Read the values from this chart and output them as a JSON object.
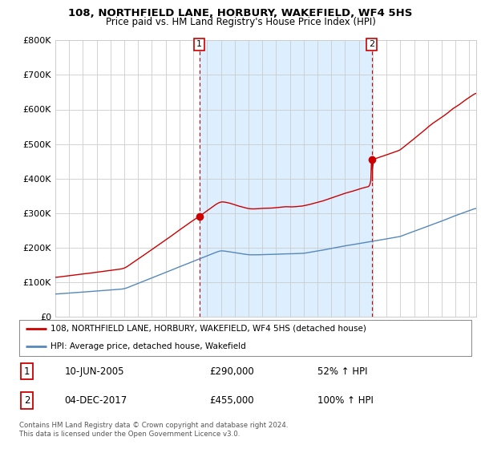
{
  "title": "108, NORTHFIELD LANE, HORBURY, WAKEFIELD, WF4 5HS",
  "subtitle": "Price paid vs. HM Land Registry's House Price Index (HPI)",
  "ylim": [
    0,
    800000
  ],
  "yticks": [
    0,
    100000,
    200000,
    300000,
    400000,
    500000,
    600000,
    700000,
    800000
  ],
  "xlim_start": 1995.0,
  "xlim_end": 2025.5,
  "sale1_year": 2005.44,
  "sale1_price": 290000,
  "sale2_year": 2017.92,
  "sale2_price": 455000,
  "sale1_label": "1",
  "sale2_label": "2",
  "line1_label": "108, NORTHFIELD LANE, HORBURY, WAKEFIELD, WF4 5HS (detached house)",
  "line2_label": "HPI: Average price, detached house, Wakefield",
  "copyright": "Contains HM Land Registry data © Crown copyright and database right 2024.\nThis data is licensed under the Open Government Licence v3.0.",
  "red_color": "#cc0000",
  "blue_color": "#5588bb",
  "shade_color": "#ddeeff",
  "vline_color": "#cc0000",
  "grid_color": "#cccccc",
  "background_color": "#ffffff",
  "title_fontsize": 9.5,
  "subtitle_fontsize": 8.5
}
